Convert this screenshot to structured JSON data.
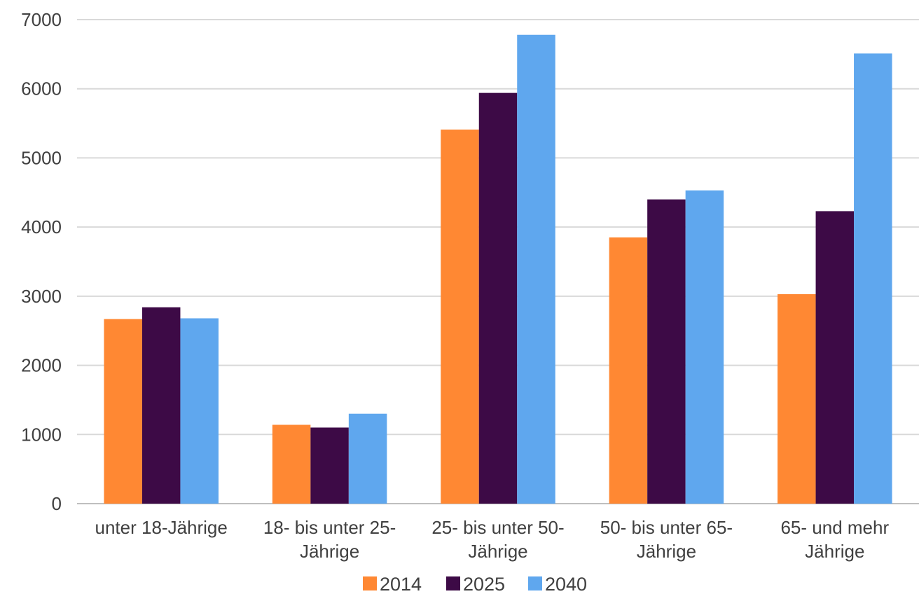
{
  "chart_data": {
    "type": "bar",
    "title": "",
    "xlabel": "",
    "ylabel": "",
    "categories": [
      [
        "unter 18-Jährige"
      ],
      [
        "18- bis unter 25-",
        "Jährige"
      ],
      [
        "25- bis unter 50-",
        "Jährige"
      ],
      [
        "50- bis unter 65-",
        "Jährige"
      ],
      [
        "65- und mehr",
        "Jährige"
      ]
    ],
    "series": [
      {
        "name": "2014",
        "color": "#FF8833",
        "values": [
          2670,
          1140,
          5410,
          3850,
          3030
        ]
      },
      {
        "name": "2025",
        "color": "#3D0A46",
        "values": [
          2840,
          1100,
          5940,
          4400,
          4230
        ]
      },
      {
        "name": "2040",
        "color": "#5FA7EE",
        "values": [
          2680,
          1300,
          6780,
          4530,
          6510
        ]
      }
    ],
    "ylim": [
      0,
      7000
    ],
    "yticks": [
      "0",
      "1000",
      "2000",
      "3000",
      "4000",
      "5000",
      "6000",
      "7000"
    ],
    "grid": true,
    "legend_position": "bottom"
  }
}
